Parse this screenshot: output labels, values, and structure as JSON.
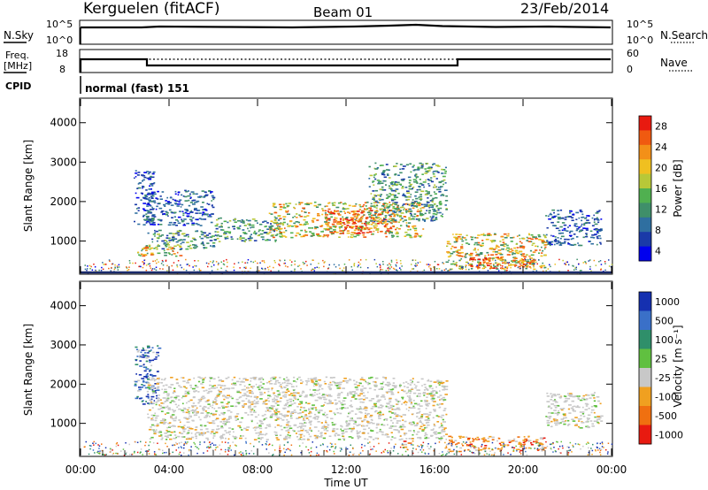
{
  "header": {
    "station": "Kerguelen (fitACF)",
    "beam": "Beam 01",
    "date": "23/Feb/2014"
  },
  "noise_panel": {
    "left_label": "N.Sky",
    "right_label": "N.Search",
    "ticks": [
      "10^5",
      "10^0"
    ]
  },
  "freq_panel": {
    "left_label_1": "Freq.",
    "left_label_2": "[MHz]",
    "right_label": "Nave",
    "left_ticks": [
      "18",
      "8"
    ],
    "right_ticks": [
      "60",
      "0"
    ]
  },
  "cpid": {
    "label": "CPID",
    "value": "normal (fast) 151"
  },
  "chart_data": [
    {
      "type": "heatmap",
      "name": "power",
      "ylabel": "Slant Range [km]",
      "ylim": [
        180,
        4600
      ],
      "yticks": [
        "1000",
        "2000",
        "3000",
        "4000"
      ],
      "colorbar": {
        "label": "Power [dB]",
        "ticks": [
          "28",
          "24",
          "20",
          "16",
          "12",
          "8",
          "4"
        ],
        "colors": [
          "#0000ee",
          "#1a3aa8",
          "#2f6fa0",
          "#3f8f6a",
          "#50b050",
          "#b8c838",
          "#f0c020",
          "#f39018",
          "#f05a10",
          "#e81a10"
        ]
      },
      "echo_regions": [
        {
          "t": [
            2.4,
            3.3
          ],
          "r": [
            1400,
            2800
          ],
          "level": "low"
        },
        {
          "t": [
            2.8,
            6.0
          ],
          "r": [
            1400,
            2300
          ],
          "level": "low"
        },
        {
          "t": [
            2.5,
            4.5
          ],
          "r": [
            600,
            900
          ],
          "level": "high"
        },
        {
          "t": [
            3.0,
            6.0
          ],
          "r": [
            800,
            1300
          ],
          "level": "mid"
        },
        {
          "t": [
            6.0,
            9.0
          ],
          "r": [
            1000,
            1600
          ],
          "level": "mid"
        },
        {
          "t": [
            8.5,
            15.5
          ],
          "r": [
            1100,
            2000
          ],
          "level": "high"
        },
        {
          "t": [
            11.0,
            14.0
          ],
          "r": [
            1200,
            1800
          ],
          "level": "peak"
        },
        {
          "t": [
            13.0,
            16.5
          ],
          "r": [
            1500,
            3000
          ],
          "level": "mid"
        },
        {
          "t": [
            16.5,
            21.0
          ],
          "r": [
            300,
            1200
          ],
          "level": "high"
        },
        {
          "t": [
            17.5,
            20.5
          ],
          "r": [
            300,
            600
          ],
          "level": "peak"
        },
        {
          "t": [
            21.0,
            23.5
          ],
          "r": [
            900,
            1800
          ],
          "level": "low"
        }
      ]
    },
    {
      "type": "heatmap",
      "name": "velocity",
      "ylabel": "Slant Range [km]",
      "xlabel": "Time UT",
      "xticks": [
        "00:00",
        "04:00",
        "08:00",
        "12:00",
        "16:00",
        "20:00",
        "00:00"
      ],
      "ylim": [
        180,
        4600
      ],
      "yticks": [
        "1000",
        "2000",
        "3000",
        "4000"
      ],
      "colorbar": {
        "label": "Velocity [m s⁻¹]",
        "ticks": [
          "1000",
          "500",
          "100",
          "25",
          "-25",
          "-100",
          "-500",
          "-1000"
        ],
        "colors": [
          "#1530b0",
          "#3a70c8",
          "#2f8f6a",
          "#60c040",
          "#c8c8c8",
          "#f0a020",
          "#f07010",
          "#e81a10"
        ]
      },
      "echo_regions": [
        {
          "t": [
            2.4,
            3.5
          ],
          "r": [
            1500,
            3000
          ],
          "level": "toward-fast"
        },
        {
          "t": [
            3.0,
            16.5
          ],
          "r": [
            600,
            2200
          ],
          "level": "near-zero"
        },
        {
          "t": [
            14.5,
            15.0
          ],
          "r": [
            400,
            600
          ],
          "level": "away"
        },
        {
          "t": [
            16.5,
            21.0
          ],
          "r": [
            300,
            700
          ],
          "level": "away"
        },
        {
          "t": [
            21.0,
            23.5
          ],
          "r": [
            900,
            1800
          ],
          "level": "near-zero"
        }
      ]
    }
  ]
}
